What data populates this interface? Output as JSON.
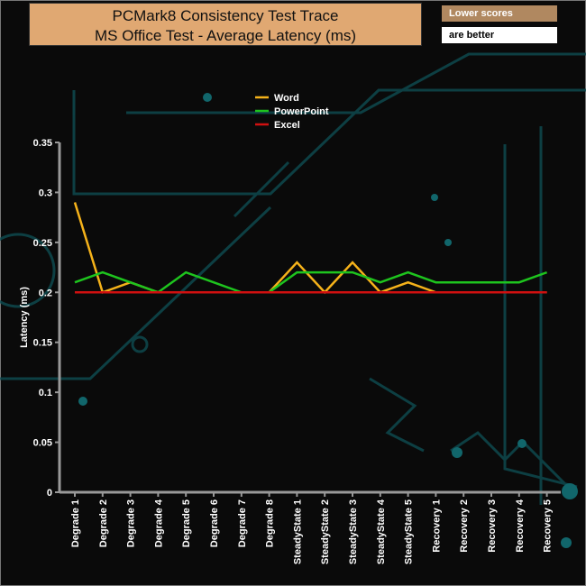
{
  "header": {
    "title_line1": "PCMark8 Consistency Test Trace",
    "title_line2": "MS Office Test -  Average Latency (ms)"
  },
  "notes": {
    "line1": "Lower scores",
    "line2": "are better"
  },
  "chart_data": {
    "type": "line",
    "title": "PCMark8 Consistency Test Trace - MS Office Test - Average Latency (ms)",
    "xlabel": "",
    "ylabel": "Latency (ms)",
    "ylim": [
      0,
      0.35
    ],
    "yticks": [
      "0",
      "0.05",
      "0.1",
      "0.15",
      "0.2",
      "0.25",
      "0.3",
      "0.35"
    ],
    "legend_position": "top-center",
    "categories": [
      "Degrade 1",
      "Degrade 2",
      "Degrade 3",
      "Degrade 4",
      "Degrade 5",
      "Degrade 6",
      "Degrade 7",
      "Degrade 8",
      "SteadyState 1",
      "SteadyState 2",
      "SteadyState 3",
      "SteadyState 4",
      "SteadyState 5",
      "Recovery 1",
      "Recovery 2",
      "Recovery 3",
      "Recovery 4",
      "Recovery 5"
    ],
    "series": [
      {
        "name": "Word",
        "color": "#f5b21a",
        "values": [
          0.29,
          0.2,
          0.21,
          0.2,
          0.2,
          0.2,
          0.2,
          0.2,
          0.23,
          0.2,
          0.23,
          0.2,
          0.21,
          0.2,
          0.2,
          0.2,
          0.2,
          0.2
        ]
      },
      {
        "name": "PowerPoint",
        "color": "#1ec41e",
        "values": [
          0.21,
          0.22,
          0.21,
          0.2,
          0.22,
          0.21,
          0.2,
          0.2,
          0.22,
          0.22,
          0.22,
          0.21,
          0.22,
          0.21,
          0.21,
          0.21,
          0.21,
          0.22
        ]
      },
      {
        "name": "Excel",
        "color": "#d01010",
        "values": [
          0.2,
          0.2,
          0.2,
          0.2,
          0.2,
          0.2,
          0.2,
          0.2,
          0.2,
          0.2,
          0.2,
          0.2,
          0.2,
          0.2,
          0.2,
          0.2,
          0.2,
          0.2
        ]
      }
    ]
  }
}
